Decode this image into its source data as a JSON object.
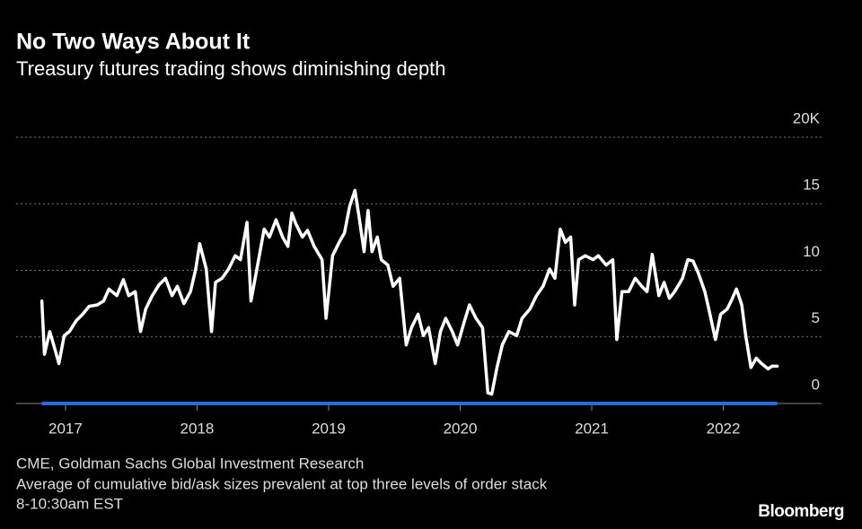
{
  "chart_data": {
    "type": "line",
    "title": "No Two Ways About It",
    "subtitle": "Treasury futures trading shows diminishing depth",
    "footer": [
      "CME, Goldman Sachs Global Investment Research",
      "Average of cumulative bid/ask sizes prevalent at top three levels of order stack",
      "8-10:30am EST"
    ],
    "logo": "Bloomberg",
    "x": [
      2016.82,
      2016.84,
      2016.88,
      2016.91,
      2016.95,
      2016.99,
      2017.03,
      2017.08,
      2017.13,
      2017.18,
      2017.24,
      2017.29,
      2017.33,
      2017.39,
      2017.44,
      2017.48,
      2017.53,
      2017.57,
      2017.61,
      2017.66,
      2017.71,
      2017.76,
      2017.81,
      2017.85,
      2017.9,
      2017.95,
      2017.99,
      2018.02,
      2018.07,
      2018.11,
      2018.14,
      2018.19,
      2018.24,
      2018.29,
      2018.33,
      2018.38,
      2018.41,
      2018.46,
      2018.51,
      2018.55,
      2018.6,
      2018.65,
      2018.69,
      2018.72,
      2018.75,
      2018.8,
      2018.84,
      2018.89,
      2018.95,
      2018.98,
      2019.03,
      2019.08,
      2019.12,
      2019.16,
      2019.2,
      2019.23,
      2019.27,
      2019.3,
      2019.33,
      2019.37,
      2019.4,
      2019.45,
      2019.49,
      2019.54,
      2019.59,
      2019.63,
      2019.68,
      2019.72,
      2019.76,
      2019.81,
      2019.85,
      2019.89,
      2019.94,
      2019.98,
      2020.03,
      2020.07,
      2020.12,
      2020.17,
      2020.21,
      2020.24,
      2020.28,
      2020.32,
      2020.37,
      2020.43,
      2020.47,
      2020.53,
      2020.58,
      2020.63,
      2020.68,
      2020.72,
      2020.76,
      2020.8,
      2020.84,
      2020.87,
      2020.9,
      2020.95,
      2021.01,
      2021.05,
      2021.11,
      2021.16,
      2021.19,
      2021.23,
      2021.28,
      2021.33,
      2021.38,
      2021.42,
      2021.46,
      2021.51,
      2021.55,
      2021.59,
      2021.63,
      2021.69,
      2021.73,
      2021.77,
      2021.81,
      2021.86,
      2021.89,
      2021.94,
      2021.98,
      2022.03,
      2022.06,
      2022.1,
      2022.14,
      2022.17,
      2022.21,
      2022.25,
      2022.29,
      2022.34,
      2022.37,
      2022.41
    ],
    "series": [
      {
        "color": "#ffffff",
        "values": [
          7.7,
          3.7,
          5.4,
          4.4,
          3.0,
          5.1,
          5.4,
          6.2,
          6.7,
          7.3,
          7.4,
          7.7,
          8.6,
          8.1,
          9.3,
          8.1,
          8.4,
          5.4,
          7.1,
          8.1,
          8.9,
          9.4,
          8.1,
          8.8,
          7.5,
          8.4,
          10.1,
          12.0,
          10.1,
          5.4,
          9.1,
          9.4,
          10.1,
          11.1,
          10.8,
          13.6,
          7.7,
          10.4,
          13.1,
          12.5,
          13.8,
          12.5,
          11.8,
          14.3,
          13.5,
          12.5,
          13.0,
          11.8,
          10.8,
          6.4,
          11.1,
          12.1,
          12.8,
          14.8,
          16.0,
          14.1,
          11.4,
          14.5,
          11.4,
          12.5,
          10.8,
          10.4,
          8.8,
          9.4,
          4.4,
          5.7,
          6.7,
          5.1,
          5.7,
          3.0,
          5.4,
          6.4,
          5.4,
          4.4,
          6.1,
          7.4,
          6.4,
          5.7,
          0.8,
          0.7,
          2.7,
          4.4,
          5.4,
          5.1,
          6.4,
          7.1,
          8.1,
          8.8,
          10.1,
          9.4,
          13.1,
          12.1,
          12.5,
          7.4,
          10.8,
          11.1,
          10.8,
          11.1,
          10.4,
          10.8,
          4.8,
          8.4,
          8.4,
          9.4,
          8.8,
          8.4,
          11.2,
          8.1,
          9.1,
          7.9,
          8.4,
          9.4,
          10.8,
          10.7,
          9.8,
          8.4,
          7.1,
          4.8,
          6.7,
          7.1,
          7.7,
          8.6,
          7.4,
          5.1,
          2.7,
          3.4,
          3.0,
          2.6,
          2.8,
          2.8
        ]
      }
    ],
    "xlim": [
      2016.625,
      2022.747
    ],
    "xticks": [
      2017,
      2018,
      2019,
      2020,
      2021,
      2022
    ],
    "ylim": [
      0,
      20
    ],
    "yticks": [
      0,
      5,
      10,
      15,
      {
        "value": 20,
        "label": "20K"
      }
    ],
    "grid": true,
    "zero_line_color": "#1f6fe0"
  }
}
